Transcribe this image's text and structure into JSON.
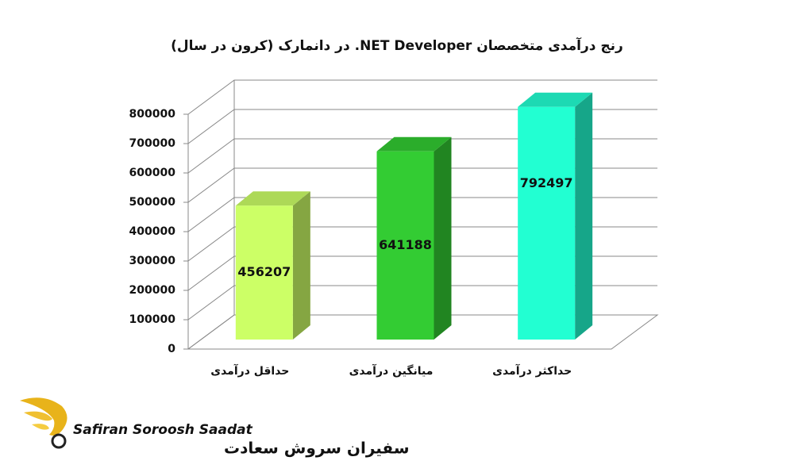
{
  "chart_data": {
    "type": "bar3d",
    "title": "رنج درآمدی متخصصان NET Developer. در دانمارک (کرون در سال)",
    "categories": [
      "حداقل درآمدی",
      "میانگین درآمدی",
      "حداکثر درآمدی"
    ],
    "values": [
      456207,
      641188,
      792497
    ],
    "colors": [
      "#ccff66",
      "#33cc33",
      "#22ffd2"
    ],
    "ylim": [
      0,
      800000
    ],
    "yticks": [
      0,
      100000,
      200000,
      300000,
      400000,
      500000,
      600000,
      700000,
      800000
    ],
    "grid": true
  },
  "logo": {
    "latin": "Safiran Soroosh Saadat",
    "persian": "سفیران سروش سعادت"
  }
}
